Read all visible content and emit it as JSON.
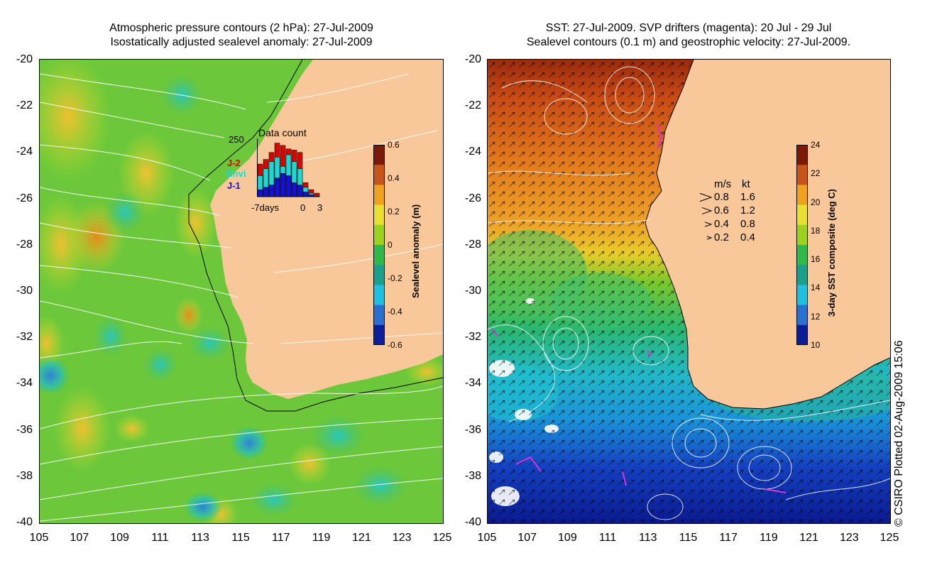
{
  "left": {
    "title_line1": "Atmospheric pressure contours (2 hPa): 27-Jul-2009",
    "title_line2": "Isostatically adjusted sealevel anomaly: 27-Jul-2009",
    "colorbar": {
      "title": "Sealevel anomaly (m)",
      "ticks": [
        "0.6",
        "0.4",
        "0.2",
        "0",
        "-0.2",
        "-0.4",
        "-0.6"
      ],
      "colors": [
        "#7a1a08",
        "#c9541a",
        "#f0a21e",
        "#e8e030",
        "#9ad21e",
        "#2fb94a",
        "#18a08a",
        "#1ec0e0",
        "#2a70d0",
        "#0a1e9a"
      ]
    },
    "histogram": {
      "title": "Data count",
      "max_label": "250",
      "x_start_label": "-7days",
      "x_zero_label": "0",
      "x_end_label": "3",
      "series": [
        {
          "name": "J-2",
          "color": "#e00000"
        },
        {
          "name": "Envi",
          "color": "#18d8d8"
        },
        {
          "name": "J-1",
          "color": "#1010e0"
        }
      ],
      "bins": [
        {
          "j2": 140,
          "envi": 90,
          "j1": 30
        },
        {
          "j2": 160,
          "envi": 120,
          "j1": 40
        },
        {
          "j2": 190,
          "envi": 150,
          "j1": 50
        },
        {
          "j2": 230,
          "envi": 170,
          "j1": 80
        },
        {
          "j2": 220,
          "envi": 130,
          "j1": 100
        },
        {
          "j2": 205,
          "envi": 180,
          "j1": 90
        },
        {
          "j2": 200,
          "envi": 150,
          "j1": 60
        },
        {
          "j2": 190,
          "envi": 120,
          "j1": 50
        },
        {
          "j2": 60,
          "envi": 40,
          "j1": 20
        },
        {
          "j2": 30,
          "envi": 15,
          "j1": 8
        },
        {
          "j2": 15,
          "envi": 5,
          "j1": 2
        }
      ]
    }
  },
  "right": {
    "title_line1": "SST: 27-Jul-2009. SVP drifters (magenta): 20 Jul - 29 Jul",
    "title_line2": "Sealevel contours (0.1 m) and geostrophic velocity: 27-Jul-2009.",
    "colorbar": {
      "title": "3-day SST composite (deg C)",
      "ticks": [
        "24",
        "22",
        "20",
        "18",
        "16",
        "14",
        "12",
        "10"
      ],
      "colors": [
        "#7a1a08",
        "#c9541a",
        "#f0a21e",
        "#e8e030",
        "#9ad21e",
        "#2fb94a",
        "#18a08a",
        "#1ec0e0",
        "#2a70d0",
        "#0a1e9a"
      ]
    },
    "velocity_legend": {
      "header_ms": "m/s",
      "header_kt": "kt",
      "rows": [
        {
          "ms": "0.8",
          "kt": "1.6"
        },
        {
          "ms": "0.6",
          "kt": "1.2"
        },
        {
          "ms": "0.4",
          "kt": "0.8"
        },
        {
          "ms": "0.2",
          "kt": "0.4"
        }
      ]
    }
  },
  "axes": {
    "lat_ticks": [
      "-20",
      "-22",
      "-24",
      "-26",
      "-28",
      "-30",
      "-32",
      "-34",
      "-36",
      "-38",
      "-40"
    ],
    "lon_ticks": [
      "105",
      "107",
      "109",
      "111",
      "113",
      "115",
      "117",
      "119",
      "121",
      "123",
      "125"
    ]
  },
  "credit": "© CSIRO Plotted 02-Aug-2009 15:06",
  "colors": {
    "land": "#f9c89a",
    "ocean_left": "#86d23a",
    "ocean_right_warm": "#e07a18"
  }
}
